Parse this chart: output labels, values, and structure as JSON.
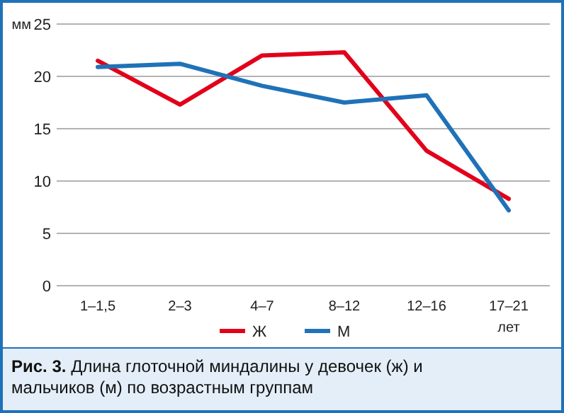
{
  "chart_data": {
    "type": "line",
    "title": "Рис. 3. Длина глоточной миндалины у девочек (ж) и мальчиков (м) по возрастным группам",
    "ylabel": "мм",
    "xlabel": "лет",
    "categories": [
      "1–1,5",
      "2–3",
      "4–7",
      "8–12",
      "12–16",
      "17–21"
    ],
    "series": [
      {
        "name": "Ж",
        "color": "#e2001a",
        "values": [
          21.5,
          17.3,
          22.0,
          22.3,
          12.9,
          8.3
        ]
      },
      {
        "name": "М",
        "color": "#1f72b8",
        "values": [
          20.9,
          21.2,
          19.1,
          17.5,
          18.2,
          7.2
        ]
      }
    ],
    "ylim": [
      0,
      25
    ],
    "yticks": [
      0,
      5,
      10,
      15,
      20,
      25
    ],
    "grid": "y",
    "legend": "bottom",
    "marker": "none",
    "line_style": "solid"
  }
}
